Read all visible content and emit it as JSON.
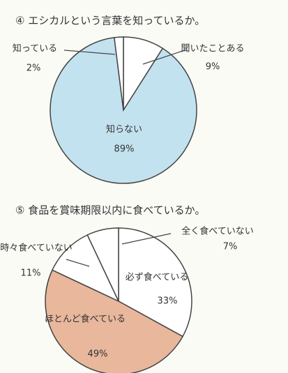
{
  "chart_data": [
    {
      "type": "pie",
      "title": "④ エシカルという言葉を知っているか。",
      "categories": [
        "聞いたことある",
        "知らない",
        "知っている"
      ],
      "values": [
        9,
        89,
        2
      ],
      "value_labels": [
        "9%",
        "89%",
        "2%"
      ],
      "colors": [
        "#ffffff",
        "#c3e2ef",
        "#ffffff"
      ]
    },
    {
      "type": "pie",
      "title": "⑤ 食品を賞味期限以内に食べているか。",
      "categories": [
        "必ず食べている",
        "ほとんど食べている",
        "時々食べていない",
        "全く食べていない"
      ],
      "values": [
        33,
        49,
        11,
        7
      ],
      "value_labels": [
        "33%",
        "49%",
        "11%",
        "7%"
      ],
      "colors": [
        "#ffffff",
        "#e8b79c",
        "#ffffff",
        "#ffffff"
      ]
    }
  ]
}
